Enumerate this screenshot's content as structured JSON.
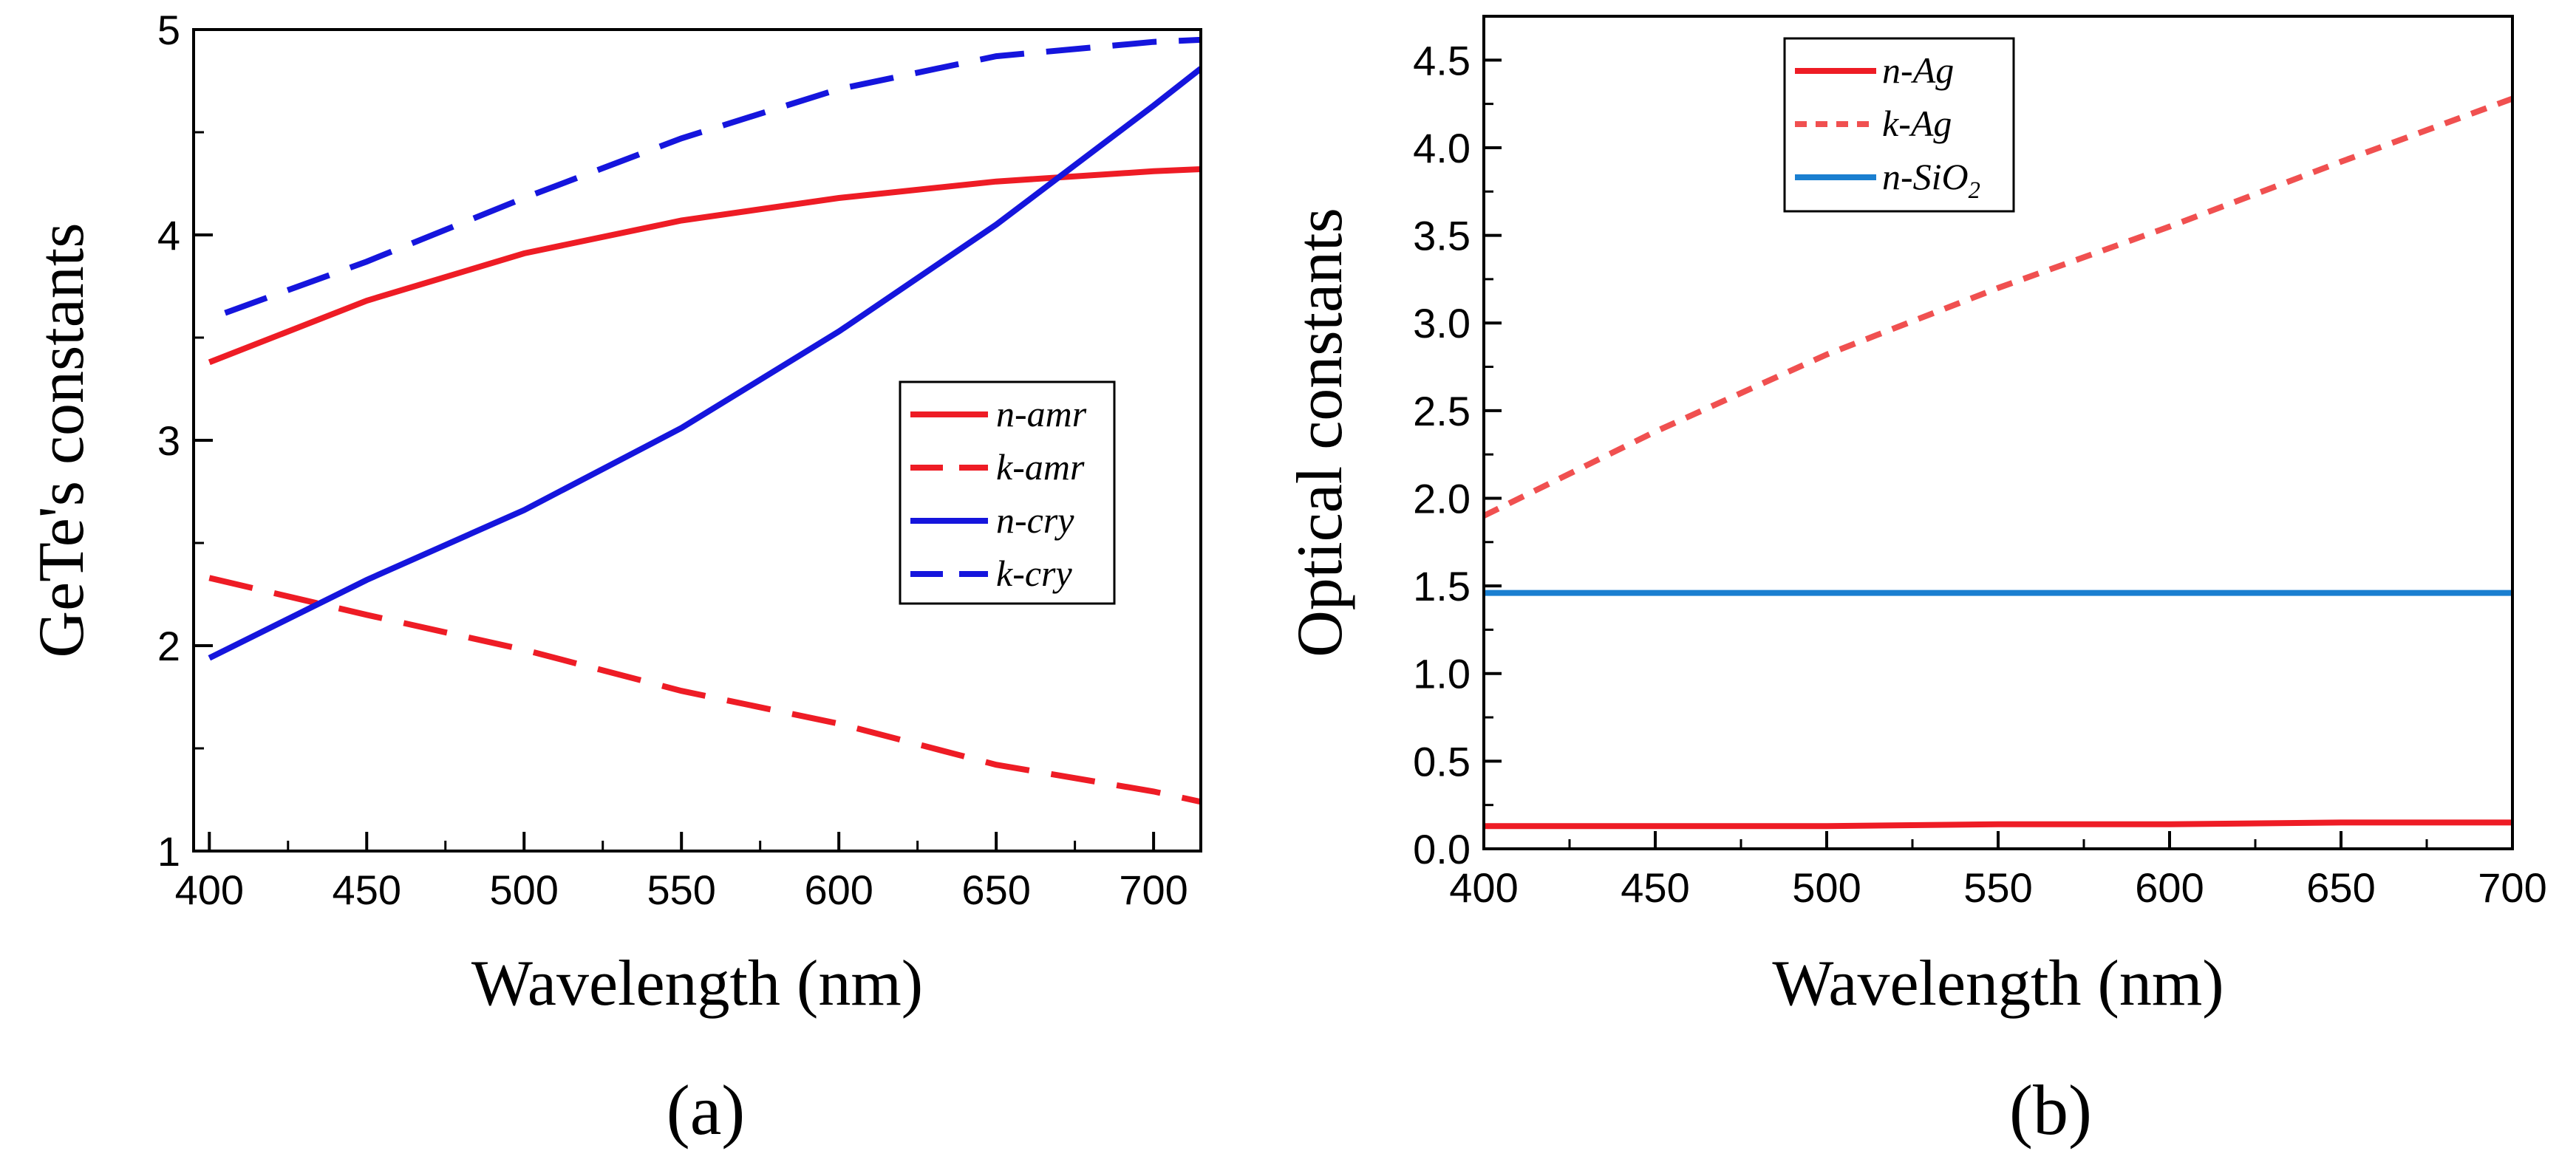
{
  "colors": {
    "red": "#ee1c25",
    "blue": "#1515dd",
    "light_red": "#f05050",
    "sky_blue": "#1a7fd0",
    "axis": "#000000"
  },
  "chart_data": [
    {
      "type": "line",
      "panel_label": "(a)",
      "xlabel": "Wavelength (nm)",
      "ylabel": "GeTe's constants",
      "xlim": [
        395,
        715
      ],
      "ylim": [
        1,
        5
      ],
      "xticks": [
        400,
        450,
        500,
        550,
        600,
        650,
        700
      ],
      "xtick_labels": [
        "400",
        "450",
        "500",
        "550",
        "600",
        "650",
        "700"
      ],
      "yticks": [
        1,
        2,
        3,
        4,
        5
      ],
      "ytick_labels": [
        "1",
        "2",
        "3",
        "4",
        "5"
      ],
      "legend_position": "center-right",
      "series": [
        {
          "name": "n-amr",
          "label_prefix": "n",
          "label_suffix": "-amr",
          "label_sub": "",
          "color": "red",
          "dash": "solid",
          "x": [
            400,
            450,
            500,
            550,
            600,
            650,
            700,
            715
          ],
          "y": [
            3.38,
            3.68,
            3.91,
            4.07,
            4.18,
            4.26,
            4.31,
            4.32
          ]
        },
        {
          "name": "k-amr",
          "label_prefix": "k",
          "label_suffix": "-amr",
          "label_sub": "",
          "color": "red",
          "dash": "long-dash",
          "x": [
            400,
            450,
            500,
            550,
            600,
            650,
            700,
            715
          ],
          "y": [
            2.33,
            2.15,
            1.98,
            1.78,
            1.62,
            1.42,
            1.29,
            1.24
          ]
        },
        {
          "name": "n-cry",
          "label_prefix": "n",
          "label_suffix": "-cry",
          "label_sub": "",
          "color": "blue",
          "dash": "solid",
          "x": [
            400,
            450,
            500,
            550,
            600,
            650,
            700,
            715
          ],
          "y": [
            1.94,
            2.32,
            2.66,
            3.06,
            3.53,
            4.05,
            4.63,
            4.81
          ]
        },
        {
          "name": "k-cry",
          "label_prefix": "k",
          "label_suffix": "-cry",
          "label_sub": "",
          "color": "blue",
          "dash": "long-dash",
          "x": [
            405,
            450,
            500,
            550,
            600,
            650,
            700,
            715
          ],
          "y": [
            3.62,
            3.87,
            4.18,
            4.47,
            4.71,
            4.87,
            4.94,
            4.95
          ]
        }
      ]
    },
    {
      "type": "line",
      "panel_label": "(b)",
      "xlabel": "Wavelength (nm)",
      "ylabel": "Optical constants",
      "xlim": [
        400,
        700
      ],
      "ylim": [
        0,
        4.75
      ],
      "xticks": [
        400,
        450,
        500,
        550,
        600,
        650,
        700
      ],
      "xtick_labels": [
        "400",
        "450",
        "500",
        "550",
        "600",
        "650",
        "700"
      ],
      "yticks": [
        0,
        0.5,
        1,
        1.5,
        2,
        2.5,
        3,
        3.5,
        4,
        4.5
      ],
      "ytick_labels": [
        "0.0",
        "0.5",
        "1.0",
        "1.5",
        "2.0",
        "2.5",
        "3.0",
        "3.5",
        "4.0",
        "4.5"
      ],
      "legend_position": "top-center",
      "series": [
        {
          "name": "n-Ag",
          "label_prefix": "n",
          "label_suffix": "-Ag",
          "label_sub": "",
          "color": "red",
          "dash": "solid",
          "x": [
            400,
            450,
            500,
            550,
            600,
            650,
            700
          ],
          "y": [
            0.13,
            0.13,
            0.13,
            0.14,
            0.14,
            0.15,
            0.15
          ]
        },
        {
          "name": "k-Ag",
          "label_prefix": "k",
          "label_suffix": "-Ag",
          "label_sub": "",
          "color": "light_red",
          "dash": "short-dash",
          "x": [
            400,
            450,
            500,
            550,
            600,
            650,
            700
          ],
          "y": [
            1.9,
            2.38,
            2.82,
            3.2,
            3.55,
            3.92,
            4.28
          ]
        },
        {
          "name": "n-SiO2",
          "label_prefix": "n",
          "label_suffix": "-SiO",
          "label_sub": "2",
          "color": "sky_blue",
          "dash": "solid",
          "x": [
            400,
            450,
            500,
            550,
            600,
            650,
            700
          ],
          "y": [
            1.46,
            1.46,
            1.46,
            1.46,
            1.46,
            1.46,
            1.46
          ]
        }
      ]
    }
  ]
}
